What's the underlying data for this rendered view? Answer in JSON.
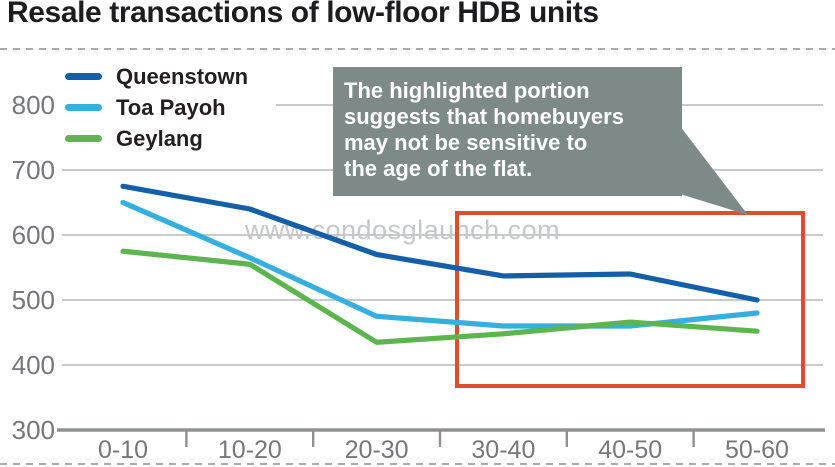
{
  "title": "Resale transactions of low-floor HDB units",
  "watermark": "www.condosglaunch.com",
  "callout": {
    "bg": "#7d8a88",
    "lines": [
      "The highlighted portion",
      "suggests that homebuyers",
      "may not be sensitive to",
      "the age of the flat."
    ]
  },
  "chart_data": {
    "type": "line",
    "title": "Resale transactions of low-floor HDB units",
    "xlabel": "",
    "ylabel": "",
    "categories": [
      "0-10",
      "10-20",
      "20-30",
      "30-40",
      "40-50",
      "50-60"
    ],
    "series": [
      {
        "name": "Queenstown",
        "color": "#155fa8",
        "values": [
          675,
          640,
          570,
          537,
          540,
          500
        ]
      },
      {
        "name": "Toa Payoh",
        "color": "#35aee0",
        "values": [
          650,
          565,
          475,
          460,
          460,
          480
        ]
      },
      {
        "name": "Geylang",
        "color": "#5cb54e",
        "values": [
          575,
          555,
          435,
          448,
          466,
          452
        ]
      }
    ],
    "ylim": [
      300,
      800
    ],
    "yticks": [
      800,
      700,
      600,
      500,
      400,
      300
    ],
    "grid": true,
    "legend_position": "top-left",
    "highlight": {
      "from_category": "30-40",
      "to_category": "50-60",
      "color": "#e14b30"
    }
  }
}
